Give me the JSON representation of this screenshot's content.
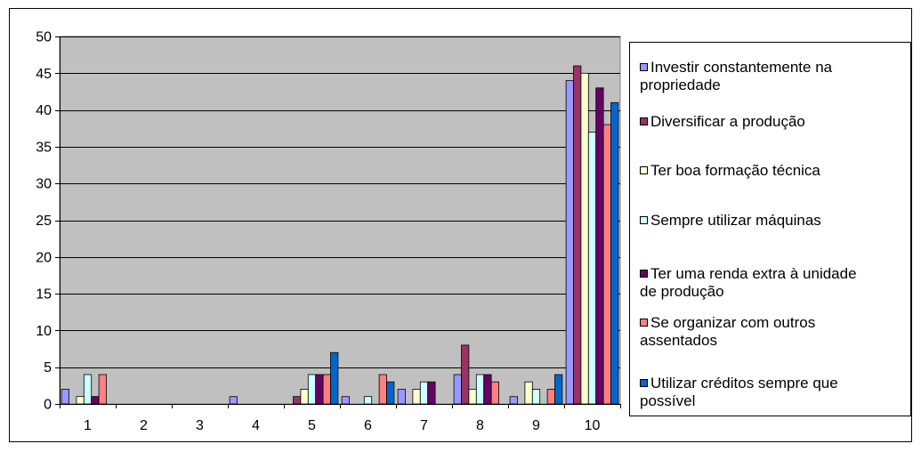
{
  "chart_data": {
    "type": "bar",
    "title": "",
    "xlabel": "",
    "ylabel": "",
    "ylim": [
      0,
      50
    ],
    "yticks": [
      0,
      5,
      10,
      15,
      20,
      25,
      30,
      35,
      40,
      45,
      50
    ],
    "grid": true,
    "legend_position": "right",
    "plot_background": "#c0c0c0",
    "categories": [
      "1",
      "2",
      "3",
      "4",
      "5",
      "6",
      "7",
      "8",
      "9",
      "10"
    ],
    "series": [
      {
        "name": "Investir constantemente na propriedade",
        "color": "#9999ff",
        "values": [
          2,
          0,
          0,
          1,
          0,
          1,
          2,
          4,
          1,
          44
        ]
      },
      {
        "name": "Diversificar a produção",
        "color": "#993366",
        "values": [
          0,
          0,
          0,
          0,
          1,
          0,
          0,
          8,
          0,
          46
        ]
      },
      {
        "name": "Ter boa formação técnica",
        "color": "#ffffcc",
        "values": [
          1,
          0,
          0,
          0,
          2,
          0,
          2,
          2,
          3,
          45
        ]
      },
      {
        "name": "Sempre utilizar máquinas",
        "color": "#ccffff",
        "values": [
          4,
          0,
          0,
          0,
          4,
          1,
          3,
          4,
          2,
          37
        ]
      },
      {
        "name": "Ter uma renda extra à unidade de produção",
        "color": "#660066",
        "values": [
          1,
          0,
          0,
          0,
          4,
          0,
          3,
          4,
          0,
          43
        ]
      },
      {
        "name": "Se organizar com outros assentados",
        "color": "#ff8080",
        "values": [
          4,
          0,
          0,
          0,
          4,
          4,
          0,
          3,
          2,
          38
        ]
      },
      {
        "name": "Utilizar créditos sempre que possível",
        "color": "#0066cc",
        "values": [
          0,
          0,
          0,
          0,
          7,
          3,
          0,
          0,
          4,
          41
        ]
      }
    ]
  },
  "legend": {
    "items": [
      {
        "lines": [
          "Investir constantemente na",
          "propriedade"
        ]
      },
      {
        "lines": [
          "Diversificar a produção"
        ]
      },
      {
        "lines": [
          "Ter boa formação técnica"
        ]
      },
      {
        "lines": [
          "Sempre utilizar máquinas"
        ]
      },
      {
        "lines": [
          "Ter uma renda extra à unidade",
          "de produção"
        ]
      },
      {
        "lines": [
          "Se organizar com outros",
          "assentados"
        ]
      },
      {
        "lines": [
          "Utilizar créditos sempre que",
          "possível"
        ]
      }
    ]
  }
}
